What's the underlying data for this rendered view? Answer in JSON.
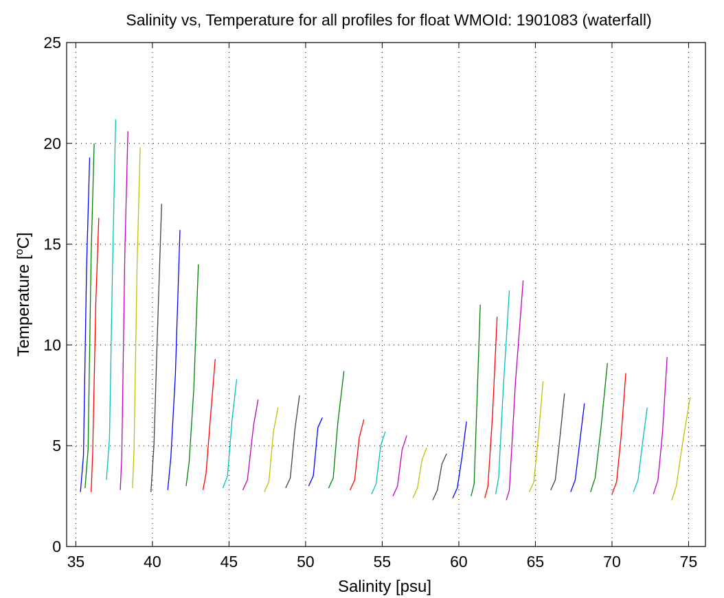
{
  "chart_data": {
    "type": "line",
    "title": "Salinity vs, Temperature for all profiles for float WMOId: 1901083 (waterfall)",
    "xlabel": "Salinity [psu]",
    "ylabel_main": "Temperature [",
    "ylabel_sup": "o",
    "ylabel_tail": "C]",
    "xlim": [
      34.4,
      76.1
    ],
    "ylim": [
      0,
      25
    ],
    "xticks": [
      "35",
      "40",
      "45",
      "50",
      "55",
      "60",
      "65",
      "70",
      "75"
    ],
    "yticks": [
      "0",
      "5",
      "10",
      "15",
      "20",
      "25"
    ],
    "grid": true,
    "legend": "none",
    "colors": [
      "#0000ff",
      "#008000",
      "#ff0000",
      "#00bfbf",
      "#bf00bf",
      "#bfbf00",
      "#404040"
    ],
    "series": [
      {
        "x": [
          35.3,
          35.5,
          35.7,
          35.9
        ],
        "y": [
          2.7,
          4.5,
          13.8,
          19.3
        ]
      },
      {
        "x": [
          35.6,
          35.8,
          36.0,
          36.2
        ],
        "y": [
          2.9,
          4.8,
          14.5,
          20.0
        ]
      },
      {
        "x": [
          36.0,
          36.1,
          36.3,
          36.5
        ],
        "y": [
          2.7,
          4.6,
          12.0,
          16.3
        ]
      },
      {
        "x": [
          37.0,
          37.2,
          37.4,
          37.6
        ],
        "y": [
          3.3,
          5.4,
          14.0,
          21.2
        ]
      },
      {
        "x": [
          37.9,
          38.0,
          38.2,
          38.4
        ],
        "y": [
          2.8,
          4.5,
          14.5,
          20.6
        ]
      },
      {
        "x": [
          38.7,
          38.8,
          39.0,
          39.2
        ],
        "y": [
          2.9,
          4.8,
          14.0,
          19.8
        ]
      },
      {
        "x": [
          39.9,
          40.1,
          40.3,
          40.6
        ],
        "y": [
          2.7,
          5.0,
          10.0,
          17.0
        ]
      },
      {
        "x": [
          41.0,
          41.2,
          41.5,
          41.8
        ],
        "y": [
          2.8,
          4.4,
          8.5,
          15.7
        ]
      },
      {
        "x": [
          42.2,
          42.4,
          42.7,
          43.0
        ],
        "y": [
          3.0,
          4.2,
          7.8,
          14.0
        ]
      },
      {
        "x": [
          43.3,
          43.5,
          43.8,
          44.1
        ],
        "y": [
          2.8,
          3.6,
          6.5,
          9.3
        ]
      },
      {
        "x": [
          44.6,
          44.9,
          45.2,
          45.5
        ],
        "y": [
          2.9,
          3.5,
          6.3,
          8.3
        ]
      },
      {
        "x": [
          45.9,
          46.2,
          46.6,
          46.9
        ],
        "y": [
          2.8,
          3.3,
          6.0,
          7.3
        ]
      },
      {
        "x": [
          47.3,
          47.6,
          47.9,
          48.2
        ],
        "y": [
          2.7,
          3.2,
          5.7,
          6.9
        ]
      },
      {
        "x": [
          48.7,
          49.0,
          49.3,
          49.6
        ],
        "y": [
          2.9,
          3.4,
          5.8,
          7.5
        ]
      },
      {
        "x": [
          50.2,
          50.5,
          50.8,
          51.1
        ],
        "y": [
          3.0,
          3.5,
          5.9,
          6.4
        ]
      },
      {
        "x": [
          51.5,
          51.8,
          52.1,
          52.5
        ],
        "y": [
          2.9,
          3.4,
          6.1,
          8.7
        ]
      },
      {
        "x": [
          52.9,
          53.2,
          53.5,
          53.8
        ],
        "y": [
          2.8,
          3.3,
          5.4,
          6.3
        ]
      },
      {
        "x": [
          54.3,
          54.6,
          54.9,
          55.2
        ],
        "y": [
          2.6,
          3.1,
          5.0,
          5.7
        ]
      },
      {
        "x": [
          55.7,
          56.0,
          56.3,
          56.6
        ],
        "y": [
          2.5,
          3.0,
          4.8,
          5.5
        ]
      },
      {
        "x": [
          57.0,
          57.3,
          57.6,
          57.9
        ],
        "y": [
          2.4,
          2.9,
          4.3,
          4.9
        ]
      },
      {
        "x": [
          58.3,
          58.6,
          58.9,
          59.2
        ],
        "y": [
          2.3,
          2.8,
          4.1,
          4.6
        ]
      },
      {
        "x": [
          59.6,
          59.9,
          60.2,
          60.5
        ],
        "y": [
          2.4,
          2.9,
          4.4,
          6.2
        ]
      },
      {
        "x": [
          60.8,
          61.0,
          61.2,
          61.4
        ],
        "y": [
          2.5,
          3.1,
          7.5,
          12.0
        ]
      },
      {
        "x": [
          61.7,
          61.9,
          62.2,
          62.5
        ],
        "y": [
          2.4,
          3.0,
          6.5,
          11.4
        ]
      },
      {
        "x": [
          62.4,
          62.6,
          62.9,
          63.3
        ],
        "y": [
          2.6,
          3.4,
          7.8,
          12.7
        ]
      },
      {
        "x": [
          63.1,
          63.3,
          63.7,
          64.2
        ],
        "y": [
          2.3,
          2.8,
          8.2,
          13.2
        ]
      },
      {
        "x": [
          64.6,
          64.9,
          65.2,
          65.5
        ],
        "y": [
          2.7,
          3.2,
          5.5,
          8.2
        ]
      },
      {
        "x": [
          66.0,
          66.3,
          66.6,
          66.9
        ],
        "y": [
          2.8,
          3.3,
          5.4,
          7.6
        ]
      },
      {
        "x": [
          67.3,
          67.6,
          67.9,
          68.2
        ],
        "y": [
          2.7,
          3.3,
          5.2,
          7.1
        ]
      },
      {
        "x": [
          68.6,
          68.9,
          69.3,
          69.7
        ],
        "y": [
          2.7,
          3.4,
          6.0,
          9.1
        ]
      },
      {
        "x": [
          70.0,
          70.3,
          70.6,
          70.9
        ],
        "y": [
          2.6,
          3.2,
          5.5,
          8.6
        ]
      },
      {
        "x": [
          71.4,
          71.7,
          72.0,
          72.3
        ],
        "y": [
          2.7,
          3.3,
          5.2,
          6.9
        ]
      },
      {
        "x": [
          72.7,
          73.0,
          73.3,
          73.6
        ],
        "y": [
          2.6,
          3.3,
          5.7,
          9.4
        ]
      },
      {
        "x": [
          73.9,
          74.2,
          74.6,
          75.1
        ],
        "y": [
          2.3,
          3.0,
          5.1,
          7.4
        ]
      }
    ]
  }
}
